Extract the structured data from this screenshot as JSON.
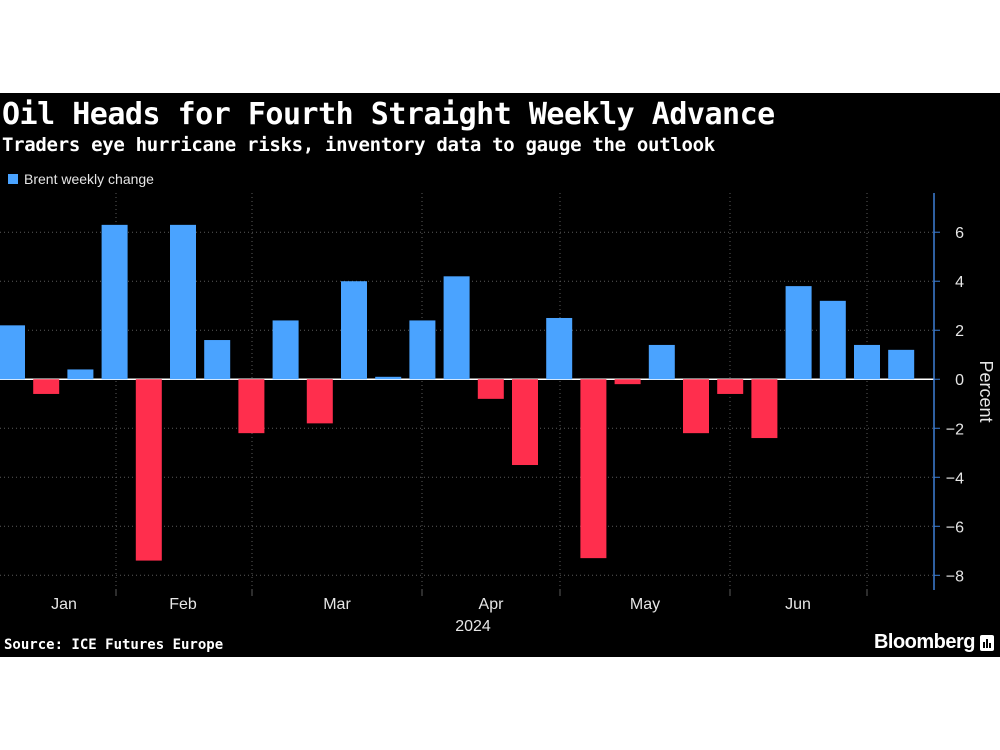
{
  "header": {
    "title": "Oil Heads for Fourth Straight Weekly Advance",
    "subtitle": "Traders eye hurricane risks, inventory data to gauge the outlook"
  },
  "footer": {
    "source": "Source: ICE Futures Europe",
    "brand": "Bloomberg"
  },
  "colors": {
    "background": "#000000",
    "positive": "#4aa3ff",
    "negative": "#ff2e4d",
    "grid": "#5a5a5a",
    "axis": "#3d7fd6"
  },
  "chart_data": {
    "type": "bar",
    "title": "Oil Heads for Fourth Straight Weekly Advance",
    "subtitle": "Traders eye hurricane risks, inventory data to gauge the outlook",
    "series": [
      {
        "name": "Brent weekly change",
        "values": [
          2.2,
          -0.6,
          0.4,
          6.3,
          -7.4,
          6.3,
          1.6,
          -2.2,
          2.4,
          -1.8,
          4.0,
          0.1,
          2.4,
          4.2,
          -0.8,
          -3.5,
          2.5,
          -7.3,
          -0.2,
          1.4,
          -2.2,
          -0.6,
          -2.4,
          3.8,
          3.2,
          1.4,
          1.2
        ]
      }
    ],
    "month_labels": [
      "Jan",
      "Feb",
      "Mar",
      "Apr",
      "May",
      "Jun"
    ],
    "year_label": "2024",
    "ylabel": "Percent",
    "yticks": [
      -8,
      -6,
      -4,
      -2,
      0,
      2,
      4,
      6
    ],
    "ylim": [
      -8.6,
      7.6
    ],
    "grid": true,
    "legend": "top-left",
    "y_axis_position": "right"
  }
}
